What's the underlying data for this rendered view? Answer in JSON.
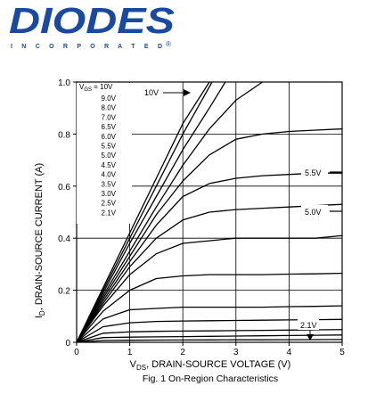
{
  "logo": {
    "brand": "DIODES",
    "sub": "I N C O R P O R A T E D",
    "mark": "®",
    "color": "#1a4aa0"
  },
  "chart_data": {
    "type": "line",
    "xlabel_main": "V",
    "xlabel_sub": "DS",
    "xlabel_rest": ", DRAIN-SOURCE VOLTAGE (V)",
    "ylabel_main": "I",
    "ylabel_sub": "D",
    "ylabel_rest": ", DRAIN-SOURCE CURRENT (A)",
    "caption": "Fig. 1  On-Region Characteristics",
    "xlim": [
      0,
      5
    ],
    "ylim": [
      0,
      1.0
    ],
    "x_ticks": [
      0,
      1,
      2,
      3,
      4,
      5
    ],
    "x_tick_labels": [
      "0",
      "1",
      "2",
      "3",
      "4",
      "5"
    ],
    "y_ticks": [
      0,
      0.2,
      0.4,
      0.6,
      0.8,
      1.0
    ],
    "y_tick_labels": [
      "0",
      "0.2",
      "0.4",
      "0.6",
      "0.8",
      "1.0"
    ],
    "grid": true,
    "legend": {
      "placement": "top-left",
      "header_main": "V",
      "header_sub": "GS",
      "header_rest": " = 10V",
      "entries": [
        "9.0V",
        "8.0V",
        "7.0V",
        "6.5V",
        "6.0V",
        "5.5V",
        "5.0V",
        "4.5V",
        "4.0V",
        "3.5V",
        "3.0V",
        "2.5V",
        "2.1V"
      ]
    },
    "annotations": [
      {
        "label": "10V",
        "target": "10V"
      },
      {
        "label": "5.5V",
        "target": "5.5V"
      },
      {
        "label": "5.0V",
        "target": "5.0V"
      },
      {
        "label": "2.1V",
        "target": "2.1V"
      }
    ],
    "series": [
      {
        "name": "10V",
        "vgs": 10.0,
        "x": [
          0,
          0.5,
          1.0,
          1.5,
          2.0,
          2.5
        ],
        "y": [
          0,
          0.21,
          0.42,
          0.63,
          0.84,
          1.0
        ]
      },
      {
        "name": "9.0V",
        "vgs": 9.0,
        "x": [
          0,
          0.5,
          1.0,
          1.5,
          2.0,
          2.55
        ],
        "y": [
          0,
          0.2,
          0.4,
          0.6,
          0.8,
          1.0
        ]
      },
      {
        "name": "8.0V",
        "vgs": 8.0,
        "x": [
          0,
          0.5,
          1.0,
          1.5,
          2.0,
          2.5,
          2.8
        ],
        "y": [
          0,
          0.19,
          0.38,
          0.56,
          0.74,
          0.9,
          1.0
        ]
      },
      {
        "name": "7.0V",
        "vgs": 7.0,
        "x": [
          0,
          0.5,
          1.0,
          1.5,
          2.0,
          2.5,
          3.0,
          3.5
        ],
        "y": [
          0,
          0.18,
          0.35,
          0.52,
          0.68,
          0.82,
          0.93,
          1.0
        ]
      },
      {
        "name": "6.5V",
        "vgs": 6.5,
        "x": [
          0,
          0.5,
          1.0,
          1.5,
          2.0,
          2.5,
          3.0,
          3.5,
          4.0,
          4.5,
          5.0
        ],
        "y": [
          0,
          0.17,
          0.33,
          0.49,
          0.62,
          0.72,
          0.78,
          0.8,
          0.81,
          0.815,
          0.82
        ]
      },
      {
        "name": "6.0V",
        "vgs": 6.0,
        "x": [
          0,
          0.5,
          1.0,
          1.5,
          2.0,
          2.5,
          3.0,
          3.5,
          4.0,
          4.5,
          5.0
        ],
        "y": [
          0,
          0.16,
          0.31,
          0.45,
          0.56,
          0.61,
          0.63,
          0.64,
          0.645,
          0.65,
          0.65
        ]
      },
      {
        "name": "5.5V",
        "vgs": 5.5,
        "x": [
          0,
          0.5,
          1.0,
          1.5,
          2.0,
          2.5,
          3.0,
          3.5,
          4.0,
          4.5,
          5.0
        ],
        "y": [
          0,
          0.15,
          0.29,
          0.4,
          0.47,
          0.5,
          0.51,
          0.515,
          0.52,
          0.525,
          0.53
        ]
      },
      {
        "name": "5.0V",
        "vgs": 5.0,
        "x": [
          0,
          0.5,
          1.0,
          1.5,
          2.0,
          2.5,
          3.0,
          3.5,
          4.0,
          4.5,
          5.0
        ],
        "y": [
          0,
          0.14,
          0.26,
          0.34,
          0.38,
          0.39,
          0.4,
          0.4,
          0.4,
          0.4,
          0.41
        ]
      },
      {
        "name": "4.5V",
        "vgs": 4.5,
        "x": [
          0,
          0.5,
          1.0,
          1.5,
          2.0,
          2.5,
          3.0,
          3.5,
          4.0,
          4.5,
          5.0
        ],
        "y": [
          0,
          0.12,
          0.2,
          0.245,
          0.255,
          0.26,
          0.26,
          0.26,
          0.262,
          0.263,
          0.265
        ]
      },
      {
        "name": "4.0V",
        "vgs": 4.0,
        "x": [
          0,
          0.5,
          1.0,
          1.5,
          2.0,
          2.5,
          3.0,
          3.5,
          4.0,
          4.5,
          5.0
        ],
        "y": [
          0,
          0.09,
          0.125,
          0.13,
          0.135,
          0.135,
          0.135,
          0.135,
          0.137,
          0.138,
          0.14
        ]
      },
      {
        "name": "3.5V",
        "vgs": 3.5,
        "x": [
          0,
          0.5,
          1.0,
          1.5,
          2.0,
          2.5,
          3.0,
          3.5,
          4.0,
          4.5,
          5.0
        ],
        "y": [
          0,
          0.06,
          0.075,
          0.08,
          0.082,
          0.083,
          0.084,
          0.085,
          0.086,
          0.087,
          0.088
        ]
      },
      {
        "name": "3.0V",
        "vgs": 3.0,
        "x": [
          0,
          0.5,
          1.0,
          1.5,
          2.0,
          2.5,
          3.0,
          3.5,
          4.0,
          4.5,
          5.0
        ],
        "y": [
          0,
          0.035,
          0.04,
          0.042,
          0.043,
          0.044,
          0.045,
          0.046,
          0.047,
          0.048,
          0.049
        ]
      },
      {
        "name": "2.5V",
        "vgs": 2.5,
        "x": [
          0,
          0.5,
          1.0,
          1.5,
          2.0,
          2.5,
          3.0,
          3.5,
          4.0,
          4.5,
          5.0
        ],
        "y": [
          0,
          0.018,
          0.02,
          0.021,
          0.022,
          0.023,
          0.024,
          0.025,
          0.026,
          0.027,
          0.028
        ]
      },
      {
        "name": "2.1V",
        "vgs": 2.1,
        "x": [
          0,
          0.5,
          1.0,
          1.5,
          2.0,
          2.5,
          3.0,
          3.5,
          4.0,
          4.5,
          5.0
        ],
        "y": [
          0,
          0.007,
          0.008,
          0.0085,
          0.009,
          0.0092,
          0.0095,
          0.0097,
          0.01,
          0.0102,
          0.0105
        ]
      }
    ]
  }
}
